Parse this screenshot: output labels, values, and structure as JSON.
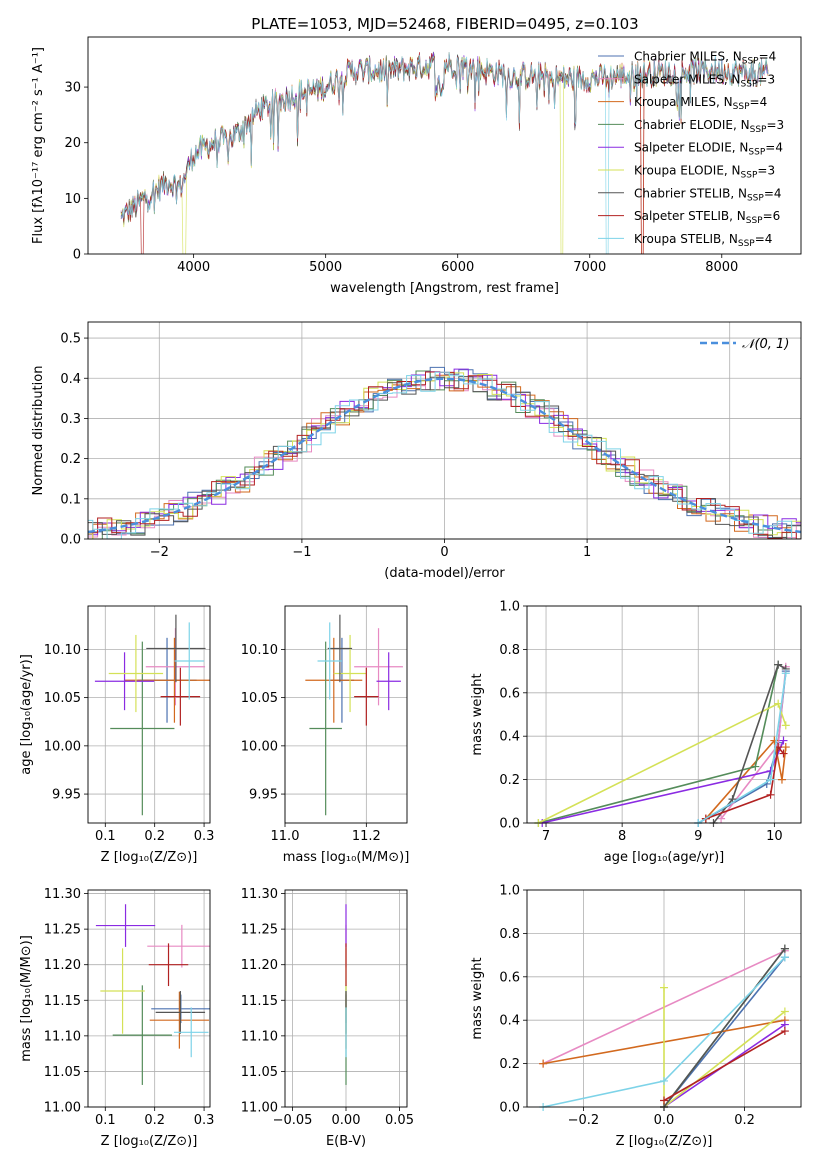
{
  "figure": {
    "title": "PLATE=1053, MJD=52468, FIBERID=0495, z=0.103"
  },
  "chart_data": [
    {
      "id": "spectrum",
      "type": "line",
      "xlabel": "wavelength [Angstrom, rest frame]",
      "ylabel": "Flux [fλ10⁻¹⁷ erg cm⁻² s⁻¹ A⁻¹]",
      "xlim": [
        3200,
        8600
      ],
      "ylim": [
        0,
        39
      ],
      "xticks": [
        4000,
        5000,
        6000,
        7000,
        8000
      ],
      "yticks": [
        0,
        10,
        20,
        30
      ],
      "grid": false,
      "legend_position": "top-right",
      "continuum": {
        "x": [
          3450,
          3600,
          3800,
          3900,
          4000,
          4150,
          4300,
          4500,
          4800,
          5000,
          5200,
          5500,
          5800,
          6000,
          6200,
          6400,
          6600,
          6800,
          7000,
          7200,
          7500,
          7800,
          8000,
          8200,
          8350
        ],
        "y": [
          6.5,
          9.5,
          13,
          12,
          18,
          20,
          21,
          26,
          29,
          30,
          33,
          33,
          34,
          34,
          33,
          32,
          32,
          31.5,
          31.5,
          32,
          32.5,
          33,
          33,
          32.5,
          32.5
        ]
      },
      "series": [
        {
          "name": "Chabrier MILES, N_SSP=4",
          "color": "#4c72b0"
        },
        {
          "name": "Salpeter MILES, N_SSP=3",
          "color": "#e78ac3"
        },
        {
          "name": "Kroupa MILES, N_SSP=4",
          "color": "#d2691e"
        },
        {
          "name": "Chabrier ELODIE, N_SSP=3",
          "color": "#548c5a"
        },
        {
          "name": "Salpeter ELODIE, N_SSP=4",
          "color": "#8a2be2"
        },
        {
          "name": "Kroupa ELODIE, N_SSP=3",
          "color": "#d4e157"
        },
        {
          "name": "Chabrier STELIB, N_SSP=4",
          "color": "#555555"
        },
        {
          "name": "Salpeter STELIB, N_SSP=6",
          "color": "#b22222"
        },
        {
          "name": "Kroupa STELIB, N_SSP=4",
          "color": "#7dd3e8"
        }
      ]
    },
    {
      "id": "residual_hist",
      "type": "bar",
      "xlabel": "(data-model)/error",
      "ylabel": "Normed distribution",
      "xlim": [
        -2.5,
        2.5
      ],
      "ylim": [
        0,
        0.54
      ],
      "xticks": [
        -2,
        -1,
        0,
        1,
        2
      ],
      "yticks": [
        0.0,
        0.1,
        0.2,
        0.3,
        0.4,
        0.5
      ],
      "grid": true,
      "legend_position": "top-right",
      "reference": {
        "name": "𝒩(0, 1)",
        "color": "#4a8fdd",
        "mean": 0,
        "sigma": 1
      },
      "bin_width": 0.1
    },
    {
      "id": "age_vs_Z",
      "type": "scatter",
      "xlabel": "Z [log₁₀(Z/Z⊙)]",
      "ylabel": "age  [log₁₀(age/yr)]",
      "xlim": [
        0.065,
        0.312
      ],
      "ylim": [
        9.92,
        10.145
      ],
      "xticks": [
        0.1,
        0.2,
        0.3
      ],
      "yticks": [
        9.95,
        10.0,
        10.05,
        10.1
      ],
      "grid": true,
      "points": [
        {
          "x": 0.225,
          "y": 10.068,
          "xerr": 0.06,
          "yerr": 0.044,
          "color": "#4c72b0"
        },
        {
          "x": 0.242,
          "y": 10.082,
          "xerr": 0.06,
          "yerr": 0.04,
          "color": "#e78ac3"
        },
        {
          "x": 0.24,
          "y": 10.068,
          "xerr": 0.1,
          "yerr": 0.044,
          "color": "#d2691e"
        },
        {
          "x": 0.175,
          "y": 10.018,
          "xerr": 0.065,
          "yerr": 0.09,
          "color": "#548c5a"
        },
        {
          "x": 0.139,
          "y": 10.067,
          "xerr": 0.06,
          "yerr": 0.03,
          "color": "#8a2be2"
        },
        {
          "x": 0.162,
          "y": 10.075,
          "xerr": 0.055,
          "yerr": 0.04,
          "color": "#d4e157"
        },
        {
          "x": 0.243,
          "y": 10.101,
          "xerr": 0.06,
          "yerr": 0.035,
          "color": "#555555"
        },
        {
          "x": 0.252,
          "y": 10.051,
          "xerr": 0.04,
          "yerr": 0.03,
          "color": "#b22222"
        },
        {
          "x": 0.27,
          "y": 10.088,
          "xerr": 0.03,
          "yerr": 0.04,
          "color": "#7dd3e8"
        }
      ]
    },
    {
      "id": "age_vs_mass",
      "type": "scatter",
      "xlabel": "mass [log₁₀(M/M⊙)]",
      "ylabel": "",
      "xlim": [
        11.0,
        11.3
      ],
      "ylim": [
        9.92,
        10.145
      ],
      "xticks": [
        11.0,
        11.2
      ],
      "yticks": [
        9.95,
        10.0,
        10.05,
        10.1
      ],
      "grid": true,
      "points": [
        {
          "x": 11.14,
          "y": 10.068,
          "xerr": 0.03,
          "yerr": 0.044,
          "color": "#4c72b0"
        },
        {
          "x": 11.23,
          "y": 10.082,
          "xerr": 0.06,
          "yerr": 0.04,
          "color": "#e78ac3"
        },
        {
          "x": 11.12,
          "y": 10.068,
          "xerr": 0.07,
          "yerr": 0.044,
          "color": "#d2691e"
        },
        {
          "x": 11.1,
          "y": 10.018,
          "xerr": 0.04,
          "yerr": 0.09,
          "color": "#548c5a"
        },
        {
          "x": 11.255,
          "y": 10.067,
          "xerr": 0.03,
          "yerr": 0.03,
          "color": "#8a2be2"
        },
        {
          "x": 11.16,
          "y": 10.075,
          "xerr": 0.04,
          "yerr": 0.04,
          "color": "#d4e157"
        },
        {
          "x": 11.135,
          "y": 10.101,
          "xerr": 0.03,
          "yerr": 0.035,
          "color": "#555555"
        },
        {
          "x": 11.2,
          "y": 10.051,
          "xerr": 0.03,
          "yerr": 0.03,
          "color": "#b22222"
        },
        {
          "x": 11.11,
          "y": 10.088,
          "xerr": 0.03,
          "yerr": 0.04,
          "color": "#7dd3e8"
        }
      ]
    },
    {
      "id": "massweight_vs_age",
      "type": "line",
      "xlabel": "age  [log₁₀(age/yr)]",
      "ylabel": "mass weight",
      "xlim": [
        6.75,
        10.35
      ],
      "ylim": [
        0,
        1.0
      ],
      "xticks": [
        7,
        8,
        9,
        10
      ],
      "yticks": [
        0.0,
        0.2,
        0.4,
        0.6,
        0.8,
        1.0
      ],
      "grid": true,
      "series": [
        {
          "color": "#4c72b0",
          "x": [
            9.0,
            9.9,
            10.05,
            10.15
          ],
          "y": [
            0.0,
            0.18,
            0.37,
            0.7
          ]
        },
        {
          "color": "#e78ac3",
          "x": [
            9.3,
            10.05,
            10.15
          ],
          "y": [
            0.02,
            0.36,
            0.72
          ]
        },
        {
          "color": "#d2691e",
          "x": [
            9.1,
            10.0,
            10.1,
            10.15
          ],
          "y": [
            0.02,
            0.38,
            0.2,
            0.35
          ]
        },
        {
          "color": "#548c5a",
          "x": [
            6.9,
            9.75,
            10.05
          ],
          "y": [
            0.0,
            0.26,
            0.73
          ]
        },
        {
          "color": "#8a2be2",
          "x": [
            6.95,
            9.95,
            10.12
          ],
          "y": [
            0.0,
            0.24,
            0.38
          ]
        },
        {
          "color": "#d4e157",
          "x": [
            6.9,
            10.05,
            10.15
          ],
          "y": [
            0.0,
            0.55,
            0.45
          ]
        },
        {
          "color": "#555555",
          "x": [
            9.2,
            9.45,
            10.05,
            10.15
          ],
          "y": [
            0.0,
            0.11,
            0.73,
            0.71
          ]
        },
        {
          "color": "#b22222",
          "x": [
            9.1,
            9.95,
            10.05,
            10.12
          ],
          "y": [
            0.02,
            0.13,
            0.35,
            0.32
          ]
        },
        {
          "color": "#7dd3e8",
          "x": [
            9.0,
            9.95,
            10.15
          ],
          "y": [
            0.0,
            0.2,
            0.69
          ]
        }
      ]
    },
    {
      "id": "mass_vs_Z",
      "type": "scatter",
      "xlabel": "Z [log₁₀(Z/Z⊙)]",
      "ylabel": "mass [log₁₀(M/M⊙)]",
      "xlim": [
        0.065,
        0.312
      ],
      "ylim": [
        11.0,
        11.305
      ],
      "xticks": [
        0.1,
        0.2,
        0.3
      ],
      "yticks": [
        11.0,
        11.05,
        11.1,
        11.15,
        11.2,
        11.25,
        11.3
      ],
      "grid": true,
      "points": [
        {
          "x": 0.253,
          "y": 11.138,
          "xerr": 0.06,
          "yerr": 0.02,
          "color": "#4c72b0"
        },
        {
          "x": 0.255,
          "y": 11.226,
          "xerr": 0.07,
          "yerr": 0.03,
          "color": "#e78ac3"
        },
        {
          "x": 0.25,
          "y": 11.122,
          "xerr": 0.06,
          "yerr": 0.04,
          "color": "#d2691e"
        },
        {
          "x": 0.175,
          "y": 11.101,
          "xerr": 0.06,
          "yerr": 0.07,
          "color": "#548c5a"
        },
        {
          "x": 0.141,
          "y": 11.255,
          "xerr": 0.06,
          "yerr": 0.03,
          "color": "#8a2be2"
        },
        {
          "x": 0.135,
          "y": 11.163,
          "xerr": 0.045,
          "yerr": 0.06,
          "color": "#d4e157"
        },
        {
          "x": 0.252,
          "y": 11.133,
          "xerr": 0.05,
          "yerr": 0.03,
          "color": "#555555"
        },
        {
          "x": 0.228,
          "y": 11.2,
          "xerr": 0.04,
          "yerr": 0.03,
          "color": "#b22222"
        },
        {
          "x": 0.274,
          "y": 11.105,
          "xerr": 0.035,
          "yerr": 0.035,
          "color": "#7dd3e8"
        }
      ]
    },
    {
      "id": "mass_vs_EBV",
      "type": "scatter",
      "xlabel": "E(B-V)",
      "ylabel": "",
      "xlim": [
        -0.057,
        0.057
      ],
      "ylim": [
        11.0,
        11.305
      ],
      "xticks": [
        -0.05,
        0.0,
        0.05
      ],
      "yticks": [
        11.0,
        11.05,
        11.1,
        11.15,
        11.2,
        11.25,
        11.3
      ],
      "grid": true,
      "points": [
        {
          "x": 0,
          "y": 11.138,
          "yerr": 0.02,
          "color": "#4c72b0"
        },
        {
          "x": 0,
          "y": 11.226,
          "yerr": 0.03,
          "color": "#e78ac3"
        },
        {
          "x": 0,
          "y": 11.122,
          "yerr": 0.04,
          "color": "#d2691e"
        },
        {
          "x": 0,
          "y": 11.101,
          "yerr": 0.07,
          "color": "#548c5a"
        },
        {
          "x": 0,
          "y": 11.255,
          "yerr": 0.03,
          "color": "#8a2be2"
        },
        {
          "x": 0,
          "y": 11.163,
          "yerr": 0.06,
          "color": "#d4e157"
        },
        {
          "x": 0,
          "y": 11.133,
          "yerr": 0.03,
          "color": "#555555"
        },
        {
          "x": 0,
          "y": 11.2,
          "yerr": 0.03,
          "color": "#b22222"
        },
        {
          "x": 0,
          "y": 11.105,
          "yerr": 0.035,
          "color": "#7dd3e8"
        }
      ]
    },
    {
      "id": "massweight_vs_Z",
      "type": "line",
      "xlabel": "Z [log₁₀(Z/Z⊙)]",
      "ylabel": "mass weight",
      "xlim": [
        -0.34,
        0.34
      ],
      "ylim": [
        0,
        1.0
      ],
      "xticks": [
        -0.2,
        0.0,
        0.2
      ],
      "yticks": [
        0.0,
        0.2,
        0.4,
        0.6,
        0.8,
        1.0
      ],
      "grid": true,
      "series": [
        {
          "color": "#4c72b0",
          "x": [
            0.0,
            0.3
          ],
          "y": [
            0.0,
            0.69
          ]
        },
        {
          "color": "#e78ac3",
          "x": [
            -0.3,
            0.3
          ],
          "y": [
            0.2,
            0.72
          ]
        },
        {
          "color": "#d2691e",
          "x": [
            -0.3,
            0.3
          ],
          "y": [
            0.2,
            0.4
          ]
        },
        {
          "color": "#548c5a",
          "x": [
            0.0,
            0.3
          ],
          "y": [
            0.0,
            0.73
          ]
        },
        {
          "color": "#8a2be2",
          "x": [
            0.0,
            0.3
          ],
          "y": [
            0.0,
            0.38
          ]
        },
        {
          "color": "#d4e157",
          "x": [
            0.0,
            0.0,
            0.3
          ],
          "y": [
            0.55,
            0.0,
            0.44
          ]
        },
        {
          "color": "#555555",
          "x": [
            0.0,
            0.3
          ],
          "y": [
            0.0,
            0.73
          ]
        },
        {
          "color": "#b22222",
          "x": [
            0.0,
            0.3
          ],
          "y": [
            0.03,
            0.35
          ]
        },
        {
          "color": "#7dd3e8",
          "x": [
            -0.3,
            0.0,
            0.3
          ],
          "y": [
            0.0,
            0.12,
            0.69
          ]
        }
      ]
    }
  ]
}
